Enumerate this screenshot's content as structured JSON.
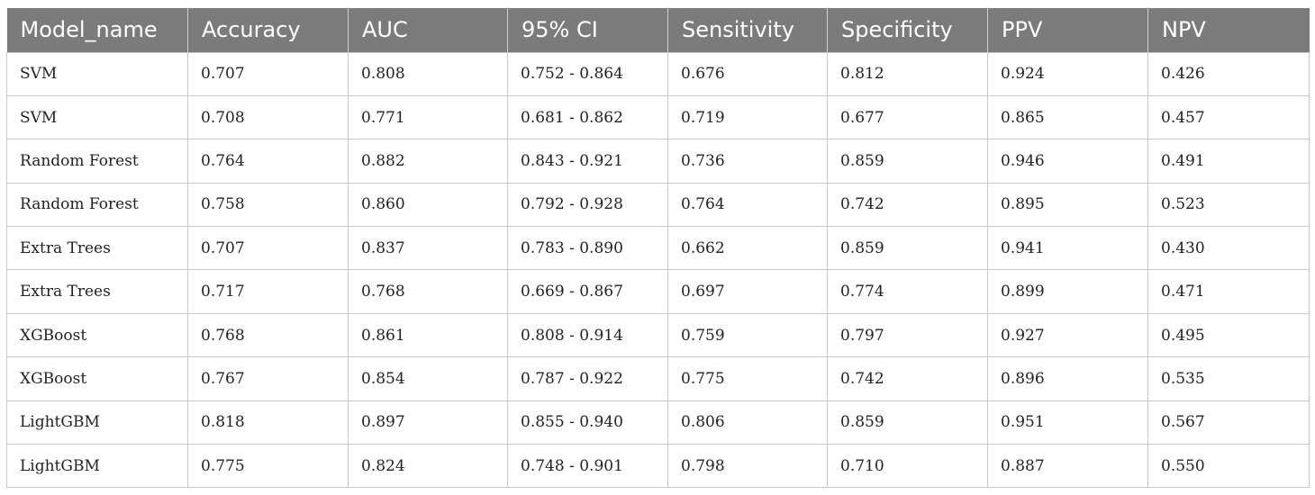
{
  "table": {
    "headers": [
      "Model_name",
      "Accuracy",
      "AUC",
      "95% CI",
      "Sensitivity",
      "Specificity",
      "PPV",
      "NPV"
    ],
    "rows": [
      [
        "SVM",
        "0.707",
        "0.808",
        "0.752 - 0.864",
        "0.676",
        "0.812",
        "0.924",
        "0.426"
      ],
      [
        "SVM",
        "0.708",
        "0.771",
        "0.681 - 0.862",
        "0.719",
        "0.677",
        "0.865",
        "0.457"
      ],
      [
        "Random Forest",
        "0.764",
        "0.882",
        "0.843 - 0.921",
        "0.736",
        "0.859",
        "0.946",
        "0.491"
      ],
      [
        "Random Forest",
        "0.758",
        "0.860",
        "0.792 - 0.928",
        "0.764",
        "0.742",
        "0.895",
        "0.523"
      ],
      [
        "Extra Trees",
        "0.707",
        "0.837",
        "0.783 - 0.890",
        "0.662",
        "0.859",
        "0.941",
        "0.430"
      ],
      [
        "Extra Trees",
        "0.717",
        "0.768",
        "0.669 - 0.867",
        "0.697",
        "0.774",
        "0.899",
        "0.471"
      ],
      [
        "XGBoost",
        "0.768",
        "0.861",
        "0.808 - 0.914",
        "0.759",
        "0.797",
        "0.927",
        "0.495"
      ],
      [
        "XGBoost",
        "0.767",
        "0.854",
        "0.787 - 0.922",
        "0.775",
        "0.742",
        "0.896",
        "0.535"
      ],
      [
        "LightGBM",
        "0.818",
        "0.897",
        "0.855 - 0.940",
        "0.806",
        "0.859",
        "0.951",
        "0.567"
      ],
      [
        "LightGBM",
        "0.775",
        "0.824",
        "0.748 - 0.901",
        "0.798",
        "0.710",
        "0.887",
        "0.550"
      ]
    ]
  }
}
